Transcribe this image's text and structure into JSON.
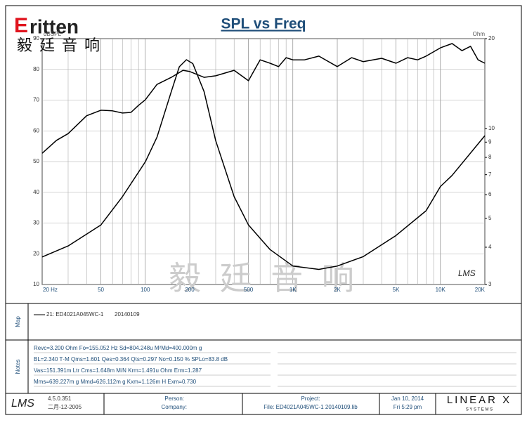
{
  "header": {
    "logo_initial": "E",
    "logo": "ritten",
    "logo_chinese": "毅廷音响"
  },
  "chart_data": {
    "type": "line",
    "title": "SPL vs Freq",
    "y_label": "dBSPL",
    "y2_label": "Ohm",
    "watermark": "毅 廷 音 响",
    "signature": "LMS",
    "xlim": [
      20,
      20000
    ],
    "x_log": true,
    "xticks": [
      {
        "value": 20,
        "label": "20 Hz"
      },
      50,
      100,
      200,
      500,
      {
        "value": 1000,
        "label": "1K"
      },
      {
        "value": 2000,
        "label": "2K"
      },
      {
        "value": 5000,
        "label": "5K"
      },
      {
        "value": 10000,
        "label": "10K"
      },
      {
        "value": 20000,
        "label": "20K"
      }
    ],
    "xgrid": [
      30,
      40,
      60,
      70,
      80,
      90,
      300,
      400,
      600,
      700,
      800,
      900,
      3000,
      4000,
      6000,
      7000,
      8000,
      9000
    ],
    "ylim": [
      10,
      90
    ],
    "yticks": [
      10,
      20,
      30,
      40,
      50,
      60,
      70,
      80,
      90
    ],
    "y2lim": [
      3,
      20
    ],
    "y2_log": true,
    "y2ticks": [
      3,
      4,
      5,
      6,
      7,
      8,
      9,
      10,
      20
    ],
    "grid": true,
    "series": [
      {
        "color": "#000000",
        "x": [
          20,
          25,
          30,
          40,
          50,
          60,
          70,
          80,
          90,
          100,
          120,
          150,
          180,
          200,
          250,
          300,
          400,
          500,
          600,
          700,
          800,
          900,
          1000,
          1200,
          1500,
          2000,
          2500,
          3000,
          4000,
          5000,
          6000,
          7000,
          8000,
          10000,
          12000,
          14000,
          16000,
          18000,
          20000
        ],
        "values": [
          52.7,
          56.9,
          59.1,
          64.9,
          66.7,
          66.5,
          65.8,
          66,
          68.3,
          70.1,
          75.1,
          77.4,
          79.7,
          79.3,
          77.4,
          77.9,
          79.7,
          76.3,
          83.1,
          82,
          80.9,
          83.8,
          83.1,
          83.1,
          84.3,
          80.9,
          83.8,
          82.5,
          83.6,
          82,
          83.8,
          83.1,
          84.3,
          87,
          88.4,
          86.1,
          87.5,
          83.1,
          82
        ]
      },
      {
        "color": "#000000",
        "axis": "y2",
        "x": [
          20,
          30,
          50,
          70,
          100,
          120,
          150,
          170,
          190,
          210,
          250,
          300,
          400,
          500,
          700,
          1000,
          1500,
          2000,
          3000,
          5000,
          8000,
          10000,
          12000,
          20000
        ],
        "values": [
          3.71,
          4.04,
          4.75,
          5.91,
          7.73,
          9.35,
          13.3,
          16.1,
          17.0,
          16.5,
          13.3,
          9.1,
          5.91,
          4.75,
          3.93,
          3.46,
          3.37,
          3.46,
          3.72,
          4.38,
          5.3,
          6.39,
          6.96,
          9.46
        ]
      }
    ]
  },
  "map": {
    "label": "Map",
    "entry": "21: ED4021A045WC-1",
    "date": "20140109"
  },
  "notes": {
    "label": "Notes",
    "lines": [
      "Revc=3.200 Ohm  Fo=155.052 Hz  Sd=804.248u M²Md=400.000m g",
      "BL=2.340 T·M  Qms=1.601  Qes=0.364  Qts=0.297  No=0.150 %  SPLo=83.8 dB",
      "Vas=151.391m Ltr  Cms=1.648m M/N  Krm=1.491u Ohm  Erm=1.287",
      "Mms=639.227m g  Mmd=626.112m g  Kxm=1.126m H  Exm=0.730"
    ]
  },
  "footer": {
    "logo": "LMS",
    "version": "4.5.0.351",
    "build_date": "二月-12-2005",
    "person": "Person:",
    "company": "Company:",
    "project": "Project:",
    "file": "File: ED4021A045WC-1  20140109.lib",
    "date": "Jan 10, 2014",
    "time": "Fri  5:29 pm",
    "brand": "LINEAR X",
    "brand_sub": "S Y S T E M S"
  }
}
